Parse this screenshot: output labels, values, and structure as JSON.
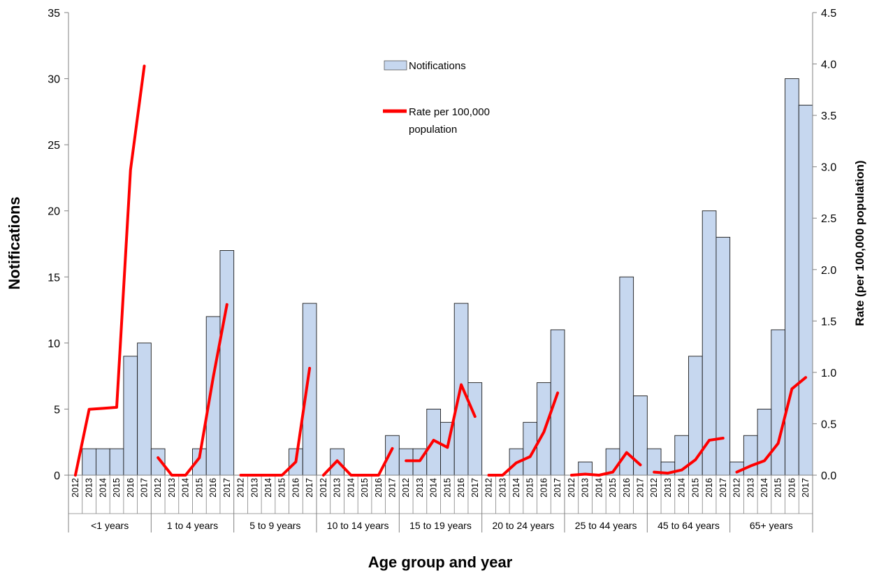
{
  "chart_data": {
    "type": "bar",
    "xlabel": "Age group and year",
    "ylabel": "Notifications",
    "y2label": "Rate (per 100,000 population)",
    "ylim": [
      0,
      35
    ],
    "y2lim": [
      0,
      4.5
    ],
    "yticks": [
      "0",
      "5",
      "10",
      "15",
      "20",
      "25",
      "30",
      "35"
    ],
    "y2ticks": [
      "0.0",
      "0.5",
      "1.0",
      "1.5",
      "2.0",
      "2.5",
      "3.0",
      "3.5",
      "4.0",
      "4.5"
    ],
    "years": [
      "2012",
      "2013",
      "2014",
      "2015",
      "2016",
      "2017"
    ],
    "groups": [
      {
        "label": "<1 years",
        "notifications": [
          0,
          2,
          2,
          2,
          9,
          10
        ],
        "rate": [
          0.0,
          0.64,
          0.65,
          0.66,
          2.97,
          3.98
        ]
      },
      {
        "label": "1 to 4 years",
        "notifications": [
          2,
          0,
          0,
          2,
          12,
          17
        ],
        "rate": [
          0.17,
          0.0,
          0.0,
          0.17,
          0.95,
          1.66
        ]
      },
      {
        "label": "5 to 9 years",
        "notifications": [
          0,
          0,
          0,
          0,
          2,
          13
        ],
        "rate": [
          0.0,
          0.0,
          0.0,
          0.0,
          0.13,
          1.04
        ]
      },
      {
        "label": "10 to 14 years",
        "notifications": [
          0,
          2,
          0,
          0,
          0,
          3
        ],
        "rate": [
          0.0,
          0.14,
          0.0,
          0.0,
          0.0,
          0.26
        ]
      },
      {
        "label": "15 to 19 years",
        "notifications": [
          2,
          2,
          5,
          4,
          13,
          7
        ],
        "rate": [
          0.14,
          0.14,
          0.34,
          0.27,
          0.88,
          0.57
        ]
      },
      {
        "label": "20 to 24 years",
        "notifications": [
          0,
          0,
          2,
          4,
          7,
          11
        ],
        "rate": [
          0.0,
          0.0,
          0.12,
          0.18,
          0.42,
          0.8
        ]
      },
      {
        "label": "25 to 44 years",
        "notifications": [
          0,
          1,
          0,
          2,
          15,
          6
        ],
        "rate": [
          0.0,
          0.01,
          0.0,
          0.03,
          0.22,
          0.1
        ]
      },
      {
        "label": "45 to 64 years",
        "notifications": [
          2,
          1,
          3,
          9,
          20,
          18
        ],
        "rate": [
          0.03,
          0.02,
          0.05,
          0.15,
          0.34,
          0.36
        ]
      },
      {
        "label": "65+ years",
        "notifications": [
          1,
          3,
          5,
          11,
          30,
          28
        ],
        "rate": [
          0.03,
          0.09,
          0.14,
          0.31,
          0.84,
          0.95
        ]
      }
    ],
    "series": [
      {
        "name": "Notifications",
        "type": "bar",
        "axis": "left",
        "color": "#c6d7ef",
        "edge": "#1a1a1a"
      },
      {
        "name": "Rate per 100,000 population",
        "type": "line",
        "axis": "right",
        "color": "#ff0000"
      }
    ],
    "legend": {
      "notifications": "Notifications",
      "rate_line1": "Rate per 100,000",
      "rate_line2": "population",
      "placement": "top-center"
    },
    "grid": false
  }
}
